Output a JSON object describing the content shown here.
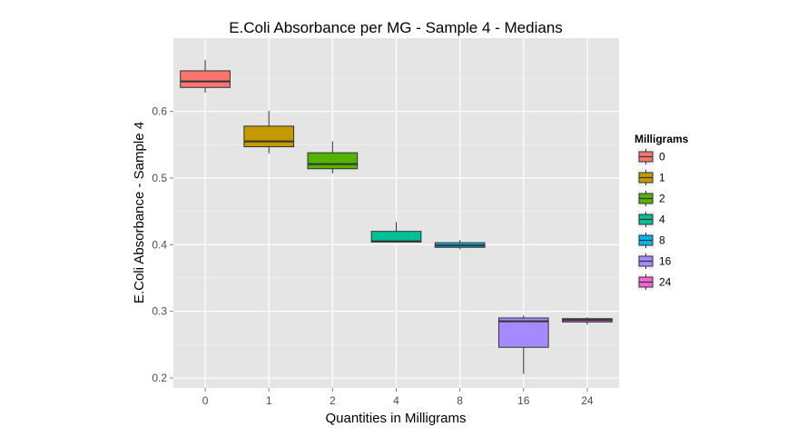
{
  "chart_data": {
    "type": "boxplot",
    "title": "E.Coli Absorbance per MG - Sample 4 - Medians",
    "xlabel": "Quantities in Milligrams",
    "ylabel": "E.Coli Absorbance - Sample 4",
    "categories": [
      "0",
      "1",
      "2",
      "4",
      "8",
      "16",
      "24"
    ],
    "ylim": [
      0.185,
      0.71
    ],
    "yticks": [
      0.2,
      0.3,
      0.4,
      0.5,
      0.6
    ],
    "ytick_labels": [
      "0.2",
      "0.3",
      "0.4",
      "0.5",
      "0.6"
    ],
    "grid": true,
    "legend": {
      "title": "Milligrams",
      "placement": "right",
      "entries": [
        "0",
        "1",
        "2",
        "4",
        "8",
        "16",
        "24"
      ]
    },
    "colors": [
      "#F8766D",
      "#C49A00",
      "#53B400",
      "#00C094",
      "#00B6EB",
      "#A58AFF",
      "#FB61D7"
    ],
    "boxes": [
      {
        "category": "0",
        "min": 0.628,
        "q1": 0.636,
        "median": 0.645,
        "q3": 0.661,
        "max": 0.677
      },
      {
        "category": "1",
        "min": 0.537,
        "q1": 0.547,
        "median": 0.555,
        "q3": 0.578,
        "max": 0.601
      },
      {
        "category": "2",
        "min": 0.507,
        "q1": 0.514,
        "median": 0.521,
        "q3": 0.538,
        "max": 0.555
      },
      {
        "category": "4",
        "min": 0.403,
        "q1": 0.404,
        "median": 0.405,
        "q3": 0.42,
        "max": 0.434
      },
      {
        "category": "8",
        "min": 0.393,
        "q1": 0.396,
        "median": 0.399,
        "q3": 0.403,
        "max": 0.407
      },
      {
        "category": "16",
        "min": 0.206,
        "q1": 0.246,
        "median": 0.285,
        "q3": 0.29,
        "max": 0.294
      },
      {
        "category": "24",
        "min": 0.28,
        "q1": 0.284,
        "median": 0.287,
        "q3": 0.289,
        "max": 0.291
      }
    ]
  }
}
